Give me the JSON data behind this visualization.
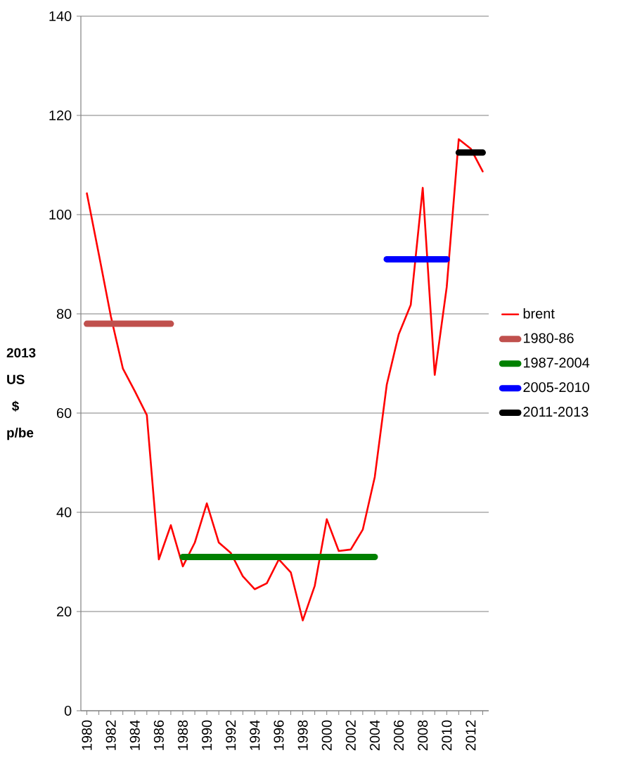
{
  "chart_data": {
    "type": "line",
    "ylabel": "2013 US $ p/be",
    "categories": [
      "1980",
      null,
      "1982",
      null,
      "1984",
      null,
      "1986",
      null,
      "1988",
      null,
      "1990",
      null,
      "1992",
      null,
      "1994",
      null,
      "1996",
      null,
      "1998",
      null,
      "2000",
      null,
      "2002",
      null,
      "2004",
      null,
      "2006",
      null,
      "2008",
      null,
      "2010",
      null,
      "2012",
      null
    ],
    "series": [
      {
        "name": "brent",
        "color": "#ff0000",
        "values": [
          104.3,
          92,
          79.5,
          69,
          64.4,
          59.6,
          30.5,
          37.4,
          29.1,
          33.9,
          41.8,
          33.9,
          31.8,
          27.1,
          24.5,
          25.7,
          30.5,
          27.9,
          18.2,
          25.2,
          38.6,
          32.2,
          32.5,
          36.5,
          47.1,
          65.7,
          75.9,
          81.8,
          105.4,
          67.7,
          85.4,
          115.2,
          113.3,
          108.7
        ]
      },
      {
        "name": "1980-86",
        "color": "#c0504d",
        "values": [
          78,
          78,
          78,
          78,
          78,
          78,
          78,
          78,
          null,
          null,
          null,
          null,
          null,
          null,
          null,
          null,
          null,
          null,
          null,
          null,
          null,
          null,
          null,
          null,
          null,
          null,
          null,
          null,
          null,
          null,
          null,
          null,
          null,
          null
        ]
      },
      {
        "name": "1987-2004",
        "color": "#008000",
        "values": [
          null,
          null,
          null,
          null,
          null,
          null,
          null,
          null,
          31,
          31,
          31,
          31,
          31,
          31,
          31,
          31,
          31,
          31,
          31,
          31,
          31,
          31,
          31,
          31,
          31,
          null,
          null,
          null,
          null,
          null,
          null,
          null,
          null,
          null
        ]
      },
      {
        "name": "2005-2010",
        "color": "#0000ff",
        "values": [
          null,
          null,
          null,
          null,
          null,
          null,
          null,
          null,
          null,
          null,
          null,
          null,
          null,
          null,
          null,
          null,
          null,
          null,
          null,
          null,
          null,
          null,
          null,
          null,
          null,
          91,
          91,
          91,
          91,
          91,
          91,
          null,
          null,
          null
        ]
      },
      {
        "name": "2011-2013",
        "color": "#000000",
        "values": [
          null,
          null,
          null,
          null,
          null,
          null,
          null,
          null,
          null,
          null,
          null,
          null,
          null,
          null,
          null,
          null,
          null,
          null,
          null,
          null,
          null,
          null,
          null,
          null,
          null,
          null,
          null,
          null,
          null,
          null,
          null,
          112.5,
          112.5,
          112.5
        ]
      }
    ],
    "ylim": [
      0,
      140
    ],
    "yticks": [
      0,
      20,
      40,
      60,
      80,
      100,
      120,
      140
    ],
    "grid": "y",
    "legend": "right",
    "marker": "none"
  }
}
